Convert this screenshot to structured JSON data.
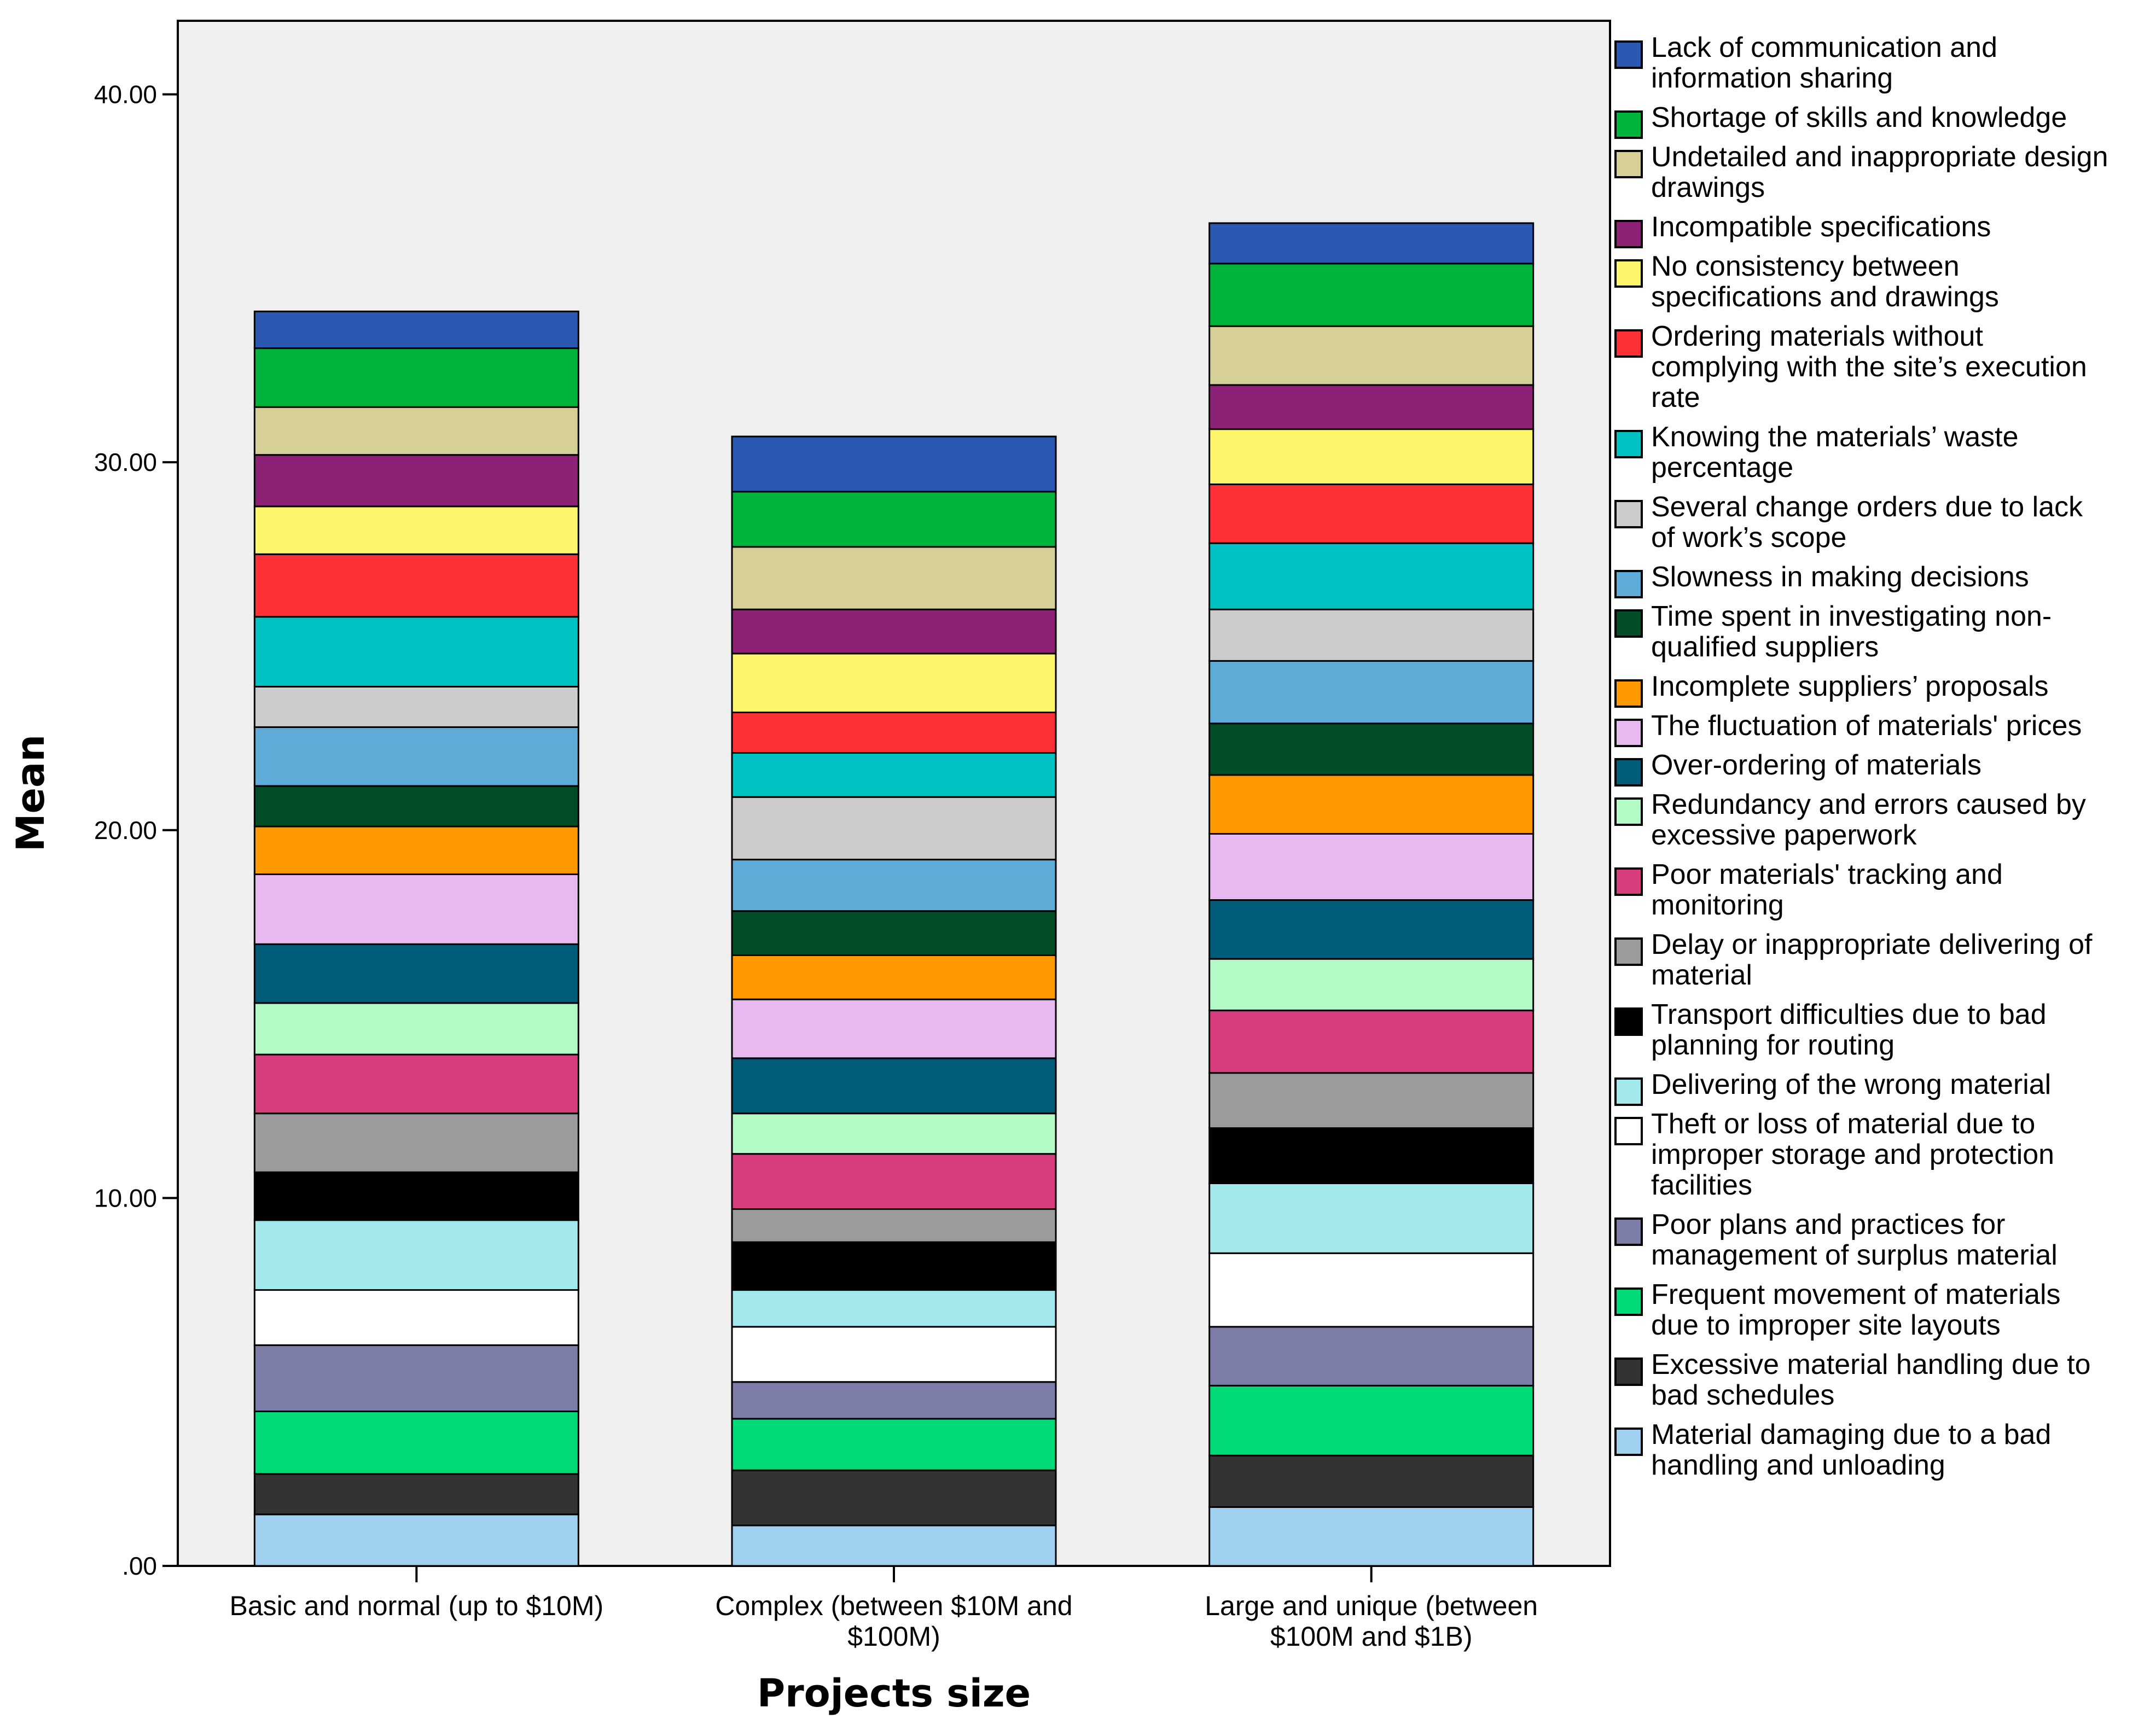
{
  "chart_data": {
    "type": "bar",
    "stacked": true,
    "title": "",
    "xlabel": "Projects size",
    "ylabel": "Mean",
    "ylim": [
      0,
      42
    ],
    "yticks": [
      0,
      10,
      20,
      30,
      40
    ],
    "ytick_labels": [
      ".00",
      "10.00",
      "20.00",
      "30.00",
      "40.00"
    ],
    "grid": false,
    "legend_position": "right",
    "categories": [
      [
        "Basic and normal (up to $10M)"
      ],
      [
        "Complex (between $10M and",
        "$100M)"
      ],
      [
        "Large and unique (between",
        "$100M and $1B)"
      ]
    ],
    "series": [
      {
        "name": "Material damaging due to a bad handling and unloading",
        "legend_lines": [
          "Material damaging due to a bad",
          "handling and unloading"
        ],
        "color": "#9fd0ef",
        "values": [
          1.4,
          1.1,
          1.6
        ]
      },
      {
        "name": "Excessive material handling due to bad schedules",
        "legend_lines": [
          "Excessive material handling due to",
          "bad schedules"
        ],
        "color": "#333333",
        "values": [
          1.1,
          1.5,
          1.4
        ]
      },
      {
        "name": "Frequent movement of materials due to improper site layouts",
        "legend_lines": [
          "Frequent movement of materials",
          "due to improper site layouts"
        ],
        "color": "#00d977",
        "values": [
          1.7,
          1.4,
          1.9
        ]
      },
      {
        "name": "Poor plans and practices for management of surplus material",
        "legend_lines": [
          "Poor plans and practices for",
          "management of surplus material"
        ],
        "color": "#7b7da8",
        "values": [
          1.8,
          1.0,
          1.6
        ]
      },
      {
        "name": "Theft or loss of material due to improper storage and protection facilities",
        "legend_lines": [
          "Theft or loss of material due to",
          "improper storage and protection",
          "facilities"
        ],
        "color": "#ffffff",
        "values": [
          1.5,
          1.5,
          2.0
        ]
      },
      {
        "name": "Delivering of the wrong material",
        "legend_lines": [
          "Delivering of the wrong material"
        ],
        "color": "#a3e8ea",
        "values": [
          1.9,
          1.0,
          1.9
        ]
      },
      {
        "name": "Transport difficulties due to bad planning for routing",
        "legend_lines": [
          "Transport difficulties due to bad",
          "planning for routing"
        ],
        "color": "#000000",
        "values": [
          1.3,
          1.3,
          1.5
        ]
      },
      {
        "name": "Delay or inappropriate delivering of material",
        "legend_lines": [
          "Delay or inappropriate delivering of",
          "material"
        ],
        "color": "#9b9b9b",
        "values": [
          1.6,
          0.9,
          1.5
        ]
      },
      {
        "name": "Poor materials' tracking and monitoring",
        "legend_lines": [
          "Poor materials' tracking and",
          "monitoring"
        ],
        "color": "#d83e7e",
        "values": [
          1.6,
          1.5,
          1.7
        ]
      },
      {
        "name": "Redundancy and errors caused by excessive paperwork",
        "legend_lines": [
          "Redundancy and errors caused by",
          "excessive paperwork"
        ],
        "color": "#b4fac6",
        "values": [
          1.4,
          1.1,
          1.4
        ]
      },
      {
        "name": "Over-ordering of materials",
        "legend_lines": [
          "Over-ordering of materials"
        ],
        "color": "#005c79",
        "values": [
          1.6,
          1.5,
          1.6
        ]
      },
      {
        "name": "The fluctuation of materials' prices",
        "legend_lines": [
          "The fluctuation of materials' prices"
        ],
        "color": "#e8b8f0",
        "values": [
          1.9,
          1.6,
          1.8
        ]
      },
      {
        "name": "Incomplete suppliers' proposals",
        "legend_lines": [
          "Incomplete suppliers’ proposals"
        ],
        "color": "#ff9900",
        "values": [
          1.3,
          1.2,
          1.6
        ]
      },
      {
        "name": "Time spent in investigating non-qualified suppliers",
        "legend_lines": [
          "Time spent in investigating non-",
          "qualified suppliers"
        ],
        "color": "#004d26",
        "values": [
          1.1,
          1.2,
          1.4
        ]
      },
      {
        "name": "Slowness in making decisions",
        "legend_lines": [
          "Slowness in making decisions"
        ],
        "color": "#5fabd7",
        "values": [
          1.6,
          1.4,
          1.7
        ]
      },
      {
        "name": "Several change orders due to lack of work's scope",
        "legend_lines": [
          "Several change orders due to lack",
          "of work’s scope"
        ],
        "color": "#cccccc",
        "values": [
          1.1,
          1.7,
          1.4
        ]
      },
      {
        "name": "Knowing the materials' waste percentage",
        "legend_lines": [
          "Knowing the materials’ waste",
          "percentage"
        ],
        "color": "#00c2c2",
        "values": [
          1.9,
          1.2,
          1.8
        ]
      },
      {
        "name": "Ordering materials without complying with the site's execution rate",
        "legend_lines": [
          "Ordering materials without",
          "complying with the site’s execution",
          "rate"
        ],
        "color": "#ff3035",
        "values": [
          1.7,
          1.1,
          1.6
        ]
      },
      {
        "name": "No consistency between specifications and drawings",
        "legend_lines": [
          "No consistency between",
          "specifications and drawings"
        ],
        "color": "#fdf56a",
        "values": [
          1.3,
          1.6,
          1.5
        ]
      },
      {
        "name": "Incompatible specifications",
        "legend_lines": [
          "Incompatible specifications"
        ],
        "color": "#8c2176",
        "values": [
          1.4,
          1.2,
          1.2
        ]
      },
      {
        "name": "Undetailed and inappropriate design drawings",
        "legend_lines": [
          "Undetailed and inappropriate design",
          "drawings"
        ],
        "color": "#d6cf98",
        "values": [
          1.3,
          1.7,
          1.6
        ]
      },
      {
        "name": "Shortage of skills and knowledge",
        "legend_lines": [
          "Shortage of skills and knowledge"
        ],
        "color": "#00b33b",
        "values": [
          1.6,
          1.5,
          1.7
        ]
      },
      {
        "name": "Lack of communication and information sharing",
        "legend_lines": [
          "Lack of communication and",
          "information sharing"
        ],
        "color": "#2b58b3",
        "values": [
          1.0,
          1.5,
          1.1
        ]
      }
    ]
  }
}
